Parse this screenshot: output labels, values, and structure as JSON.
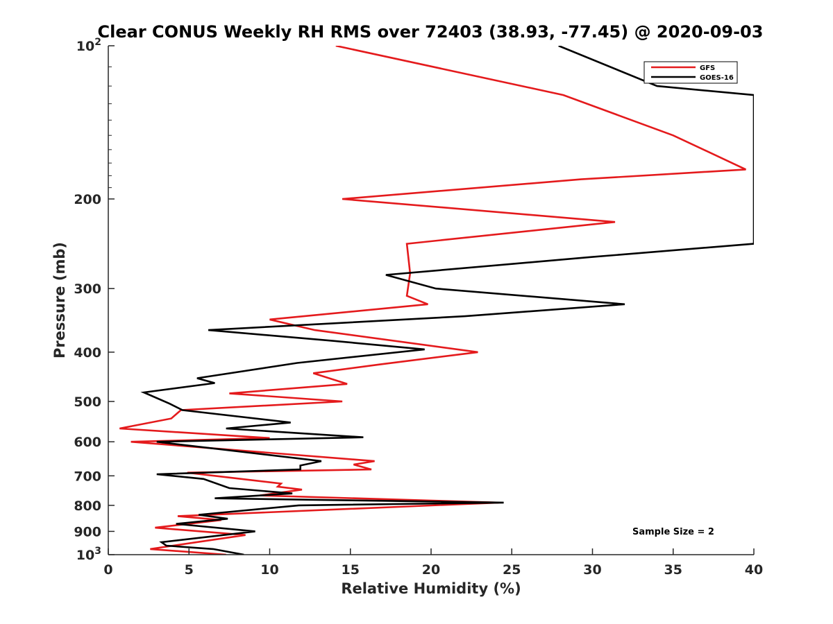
{
  "chart_data": {
    "type": "line",
    "title": "Clear CONUS Weekly RH RMS over 72403 (38.93, -77.45) @ 2020-09-03",
    "xlabel": "Relative Humidity (%)",
    "ylabel": "Pressure (mb)",
    "xlim": [
      0,
      40
    ],
    "ylim": [
      100,
      1000
    ],
    "yscale": "log",
    "y_reversed": true,
    "grid": false,
    "legend_position": "top-right",
    "annotation": "Sample Size = 2",
    "x_ticks": [
      "0",
      "5",
      "10",
      "15",
      "20",
      "25",
      "30",
      "35",
      "40"
    ],
    "x_tick_values": [
      0,
      5,
      10,
      15,
      20,
      25,
      30,
      35,
      40
    ],
    "y_ticks": [
      {
        "value": 100,
        "base": "10",
        "exp": "2"
      },
      {
        "value": 200,
        "base": "200",
        "exp": ""
      },
      {
        "value": 300,
        "base": "300",
        "exp": ""
      },
      {
        "value": 400,
        "base": "400",
        "exp": ""
      },
      {
        "value": 500,
        "base": "500",
        "exp": ""
      },
      {
        "value": 600,
        "base": "600",
        "exp": ""
      },
      {
        "value": 700,
        "base": "700",
        "exp": ""
      },
      {
        "value": 800,
        "base": "800",
        "exp": ""
      },
      {
        "value": 900,
        "base": "900",
        "exp": ""
      },
      {
        "value": 1000,
        "base": "10",
        "exp": "3"
      }
    ],
    "series": [
      {
        "name": "GFS",
        "color": "#e41a1c",
        "points": [
          [
            14.1,
            100
          ],
          [
            28.2,
            125
          ],
          [
            35.0,
            150
          ],
          [
            39.5,
            175
          ],
          [
            29.3,
            183
          ],
          [
            14.5,
            200
          ],
          [
            31.4,
            222
          ],
          [
            18.5,
            245
          ],
          [
            18.7,
            280
          ],
          [
            18.5,
            310
          ],
          [
            19.8,
            322
          ],
          [
            10.0,
            345
          ],
          [
            12.8,
            362
          ],
          [
            22.9,
            400
          ],
          [
            16.8,
            423
          ],
          [
            12.7,
            440
          ],
          [
            14.8,
            462
          ],
          [
            7.5,
            482
          ],
          [
            14.5,
            500
          ],
          [
            4.5,
            520
          ],
          [
            3.9,
            540
          ],
          [
            0.7,
            565
          ],
          [
            10.0,
            590
          ],
          [
            1.4,
            600
          ],
          [
            16.5,
            655
          ],
          [
            15.2,
            665
          ],
          [
            16.3,
            680
          ],
          [
            4.9,
            690
          ],
          [
            10.7,
            725
          ],
          [
            10.5,
            735
          ],
          [
            12.0,
            745
          ],
          [
            9.4,
            765
          ],
          [
            24.2,
            790
          ],
          [
            4.3,
            840
          ],
          [
            7.0,
            855
          ],
          [
            2.9,
            885
          ],
          [
            8.5,
            915
          ],
          [
            2.6,
            975
          ],
          [
            7.3,
            1000
          ]
        ]
      },
      {
        "name": "GOES-16",
        "color": "#000000",
        "points": [
          [
            27.9,
            100
          ],
          [
            34.0,
            120
          ],
          [
            40.0,
            125
          ],
          [
            40.0,
            245
          ],
          [
            30.0,
            260
          ],
          [
            17.2,
            282
          ],
          [
            20.3,
            300
          ],
          [
            32.0,
            322
          ],
          [
            22.1,
            340
          ],
          [
            6.2,
            362
          ],
          [
            13.9,
            380
          ],
          [
            19.6,
            395
          ],
          [
            11.7,
            420
          ],
          [
            5.5,
            450
          ],
          [
            6.6,
            460
          ],
          [
            2.2,
            480
          ],
          [
            3.8,
            505
          ],
          [
            4.6,
            520
          ],
          [
            11.3,
            550
          ],
          [
            7.3,
            565
          ],
          [
            15.8,
            588
          ],
          [
            3.0,
            600
          ],
          [
            13.2,
            655
          ],
          [
            11.9,
            668
          ],
          [
            11.9,
            680
          ],
          [
            3.0,
            695
          ],
          [
            5.9,
            710
          ],
          [
            7.5,
            740
          ],
          [
            11.4,
            758
          ],
          [
            6.6,
            775
          ],
          [
            24.5,
            790
          ],
          [
            11.8,
            800
          ],
          [
            5.6,
            835
          ],
          [
            7.4,
            850
          ],
          [
            4.2,
            870
          ],
          [
            9.1,
            900
          ],
          [
            3.3,
            945
          ],
          [
            3.6,
            960
          ],
          [
            6.5,
            975
          ],
          [
            8.4,
            1000
          ]
        ]
      }
    ]
  }
}
